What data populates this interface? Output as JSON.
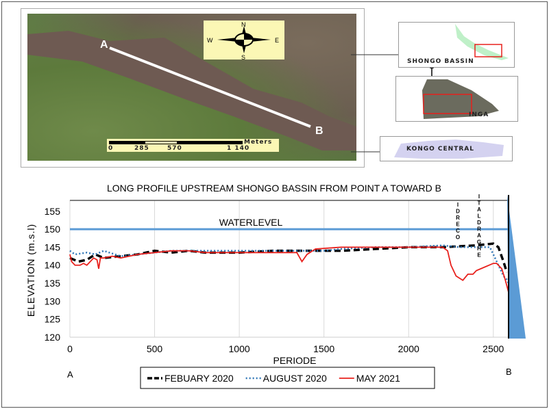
{
  "map": {
    "point_a": "A",
    "point_b": "B",
    "compass": {
      "n": "N",
      "s": "S",
      "e": "E",
      "w": "W"
    },
    "scale": {
      "unit": "Meters",
      "ticks": [
        "0",
        "285",
        "570",
        "1 140"
      ]
    },
    "insets": [
      "SHONGO BASSIN",
      "INGA",
      "KONGO CENTRAL"
    ],
    "colors": {
      "water": "#6e5a52",
      "vegetation": "#627d45",
      "inset_box": "#e8201c"
    }
  },
  "chart_data": {
    "type": "line",
    "title": "LONG PROFILE UPSTREAM SHONGO BASSIN FROM POINT A TOWARD B",
    "xlabel": "PERIODE",
    "ylabel": "ELEVATION (m.s.l)",
    "xlim": [
      0,
      2590
    ],
    "ylim": [
      120,
      158
    ],
    "xticks": [
      "0",
      "500",
      "1000",
      "1500",
      "2000",
      "2500"
    ],
    "yticks": [
      "120",
      "125",
      "130",
      "135",
      "140",
      "145",
      "150",
      "155"
    ],
    "grid": "vertical",
    "endpoints": {
      "start": "A",
      "end": "B"
    },
    "annotations": {
      "waterlevel": {
        "label": "WATERLEVEL",
        "value": 150,
        "color": "#5b9bd5"
      },
      "vertical_labels": [
        "IDRECO",
        "ITALDRAGHE"
      ]
    },
    "legend": "bottom",
    "series": [
      {
        "name": "FEBUARY 2020",
        "style": "dashed",
        "color": "#000000",
        "x": [
          0,
          50,
          100,
          150,
          200,
          300,
          400,
          500,
          600,
          700,
          800,
          1000,
          1200,
          1400,
          1600,
          1800,
          2000,
          2200,
          2400,
          2500,
          2530,
          2560,
          2580
        ],
        "y": [
          142,
          141,
          141.5,
          143,
          142,
          142.5,
          143,
          144,
          143.5,
          144,
          143.5,
          143.5,
          144,
          144,
          144,
          144.5,
          145,
          145,
          145.5,
          146,
          145,
          141,
          138
        ]
      },
      {
        "name": "AUGUST 2020",
        "style": "dotted",
        "color": "#2e75b6",
        "x": [
          0,
          30,
          100,
          150,
          200,
          300,
          400,
          500,
          600,
          700,
          1000,
          1200,
          1400,
          1500,
          1600,
          1800,
          2000,
          2200,
          2300,
          2400,
          2480,
          2500,
          2530,
          2560,
          2580,
          2590
        ],
        "y": [
          144,
          143,
          143.5,
          143,
          144,
          142.5,
          143,
          143.5,
          144,
          144,
          144,
          144,
          144,
          144,
          144.5,
          145,
          145,
          145.5,
          145,
          145,
          145,
          143,
          140,
          137,
          136,
          135
        ]
      },
      {
        "name": "MAY 2021",
        "style": "solid",
        "color": "#e8201c",
        "x": [
          0,
          10,
          30,
          60,
          80,
          100,
          120,
          140,
          160,
          170,
          180,
          200,
          250,
          300,
          350,
          400,
          500,
          600,
          700,
          800,
          1000,
          1200,
          1340,
          1370,
          1400,
          1450,
          1600,
          1700,
          2000,
          2200,
          2230,
          2250,
          2280,
          2320,
          2350,
          2380,
          2400,
          2450,
          2500,
          2520,
          2550,
          2570,
          2590
        ],
        "y": [
          143,
          141,
          140,
          140,
          140.5,
          140,
          141,
          142,
          141.5,
          139,
          142,
          142,
          142.5,
          142,
          142.5,
          143,
          143.5,
          144,
          144,
          143.5,
          143.5,
          143.5,
          143.5,
          141,
          143,
          144.5,
          145,
          145,
          145,
          145,
          144,
          140,
          137,
          135.8,
          137.5,
          137.5,
          138.5,
          139.5,
          140.5,
          140.5,
          139,
          136,
          132.5
        ]
      }
    ]
  }
}
